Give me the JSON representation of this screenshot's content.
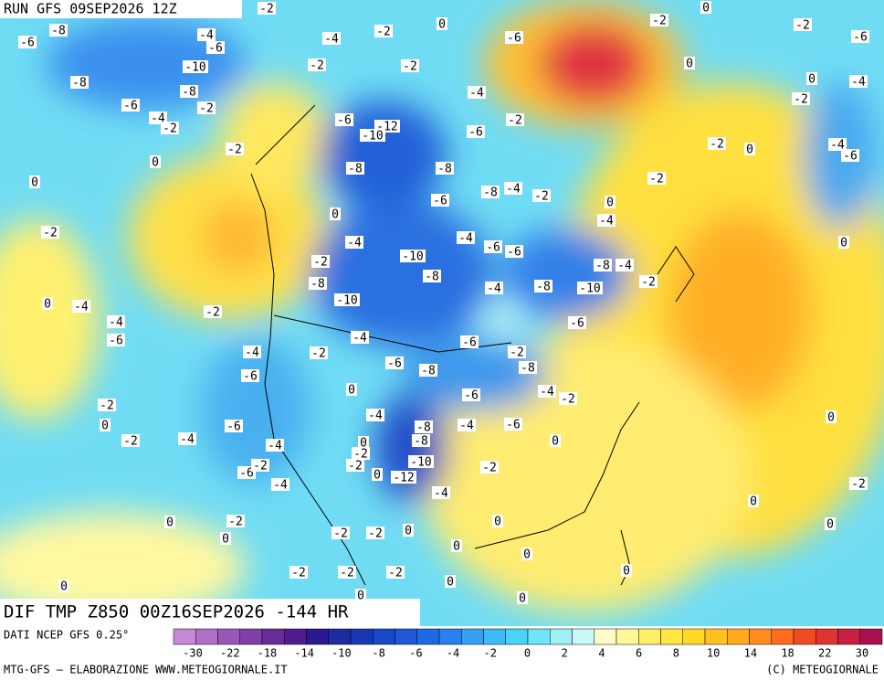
{
  "header": {
    "title": "RUN GFS 09SEP2026 12Z"
  },
  "map": {
    "subtitle": "DIF TMP Z850 00Z16SEP2026 -144 HR",
    "labels": [
      "-8",
      "-6",
      "-4",
      "-6",
      "-2",
      "-4",
      "-2",
      "0",
      "-6",
      "-2",
      "0",
      "-2",
      "-6",
      "-10",
      "-8",
      "-8",
      "-2",
      "-2",
      "-4",
      "0",
      "0",
      "-4",
      "-6",
      "-2",
      "-4",
      "-2",
      "-6",
      "-12",
      "-10",
      "-2",
      "-6",
      "-2",
      "-2",
      "0",
      "0",
      "-8",
      "-8",
      "-2",
      "0",
      "-4",
      "-6",
      "-2",
      "-6",
      "-8",
      "-4",
      "-2",
      "0",
      "-4",
      "0",
      "-2",
      "-4",
      "-10",
      "-4",
      "-6",
      "-6",
      "0",
      "-2",
      "-8",
      "-8",
      "-4",
      "-2",
      "-8",
      "-10",
      "-4",
      "-8",
      "-10",
      "0",
      "-4",
      "-2",
      "-4",
      "-6",
      "-6",
      "-4",
      "-6",
      "-4",
      "-2",
      "-2",
      "-6",
      "-8",
      "-8",
      "-6",
      "0",
      "-6",
      "-4",
      "-2",
      "-2",
      "0",
      "-4",
      "-6",
      "-8",
      "-4",
      "-6",
      "0",
      "-2",
      "-4",
      "-8",
      "0",
      "-4",
      "0",
      "-2",
      "-10",
      "-2",
      "-6",
      "-2",
      "0",
      "-12",
      "-2",
      "-4",
      "-4",
      "-2",
      "0",
      "0",
      "-2",
      "0",
      "0",
      "-2",
      "-2",
      "0",
      "0",
      "0",
      "0",
      "-2",
      "-2",
      "-2",
      "0",
      "0",
      "0",
      "0",
      "0"
    ]
  },
  "legend": {
    "source": "DATI NCEP GFS 0.25°",
    "colors": [
      "#c888d8",
      "#b070c8",
      "#9858b8",
      "#8040a8",
      "#682c98",
      "#501c8c",
      "#2c1890",
      "#1c2ca0",
      "#1838b4",
      "#1848c8",
      "#1c58d8",
      "#2068e4",
      "#2a80ec",
      "#34a0f2",
      "#3cbcf6",
      "#48d4f8",
      "#70e4f8",
      "#a0f0f8",
      "#c8fafa",
      "#fffcc8",
      "#fff898",
      "#fff068",
      "#ffe840",
      "#ffd828",
      "#ffc020",
      "#ffa820",
      "#ff8c20",
      "#ff6c20",
      "#f04c20",
      "#e03430",
      "#c82040",
      "#a81050"
    ],
    "ticks": [
      "-30",
      "-22",
      "-18",
      "-14",
      "-10",
      "-8",
      "-6",
      "-4",
      "-2",
      "0",
      "2",
      "4",
      "6",
      "8",
      "10",
      "14",
      "18",
      "22",
      "30"
    ]
  },
  "footer": {
    "left": "MTG-GFS — ELABORAZIONE WWW.METEOGIORNALE.IT",
    "right": "(C) METEOGIORNALE"
  }
}
